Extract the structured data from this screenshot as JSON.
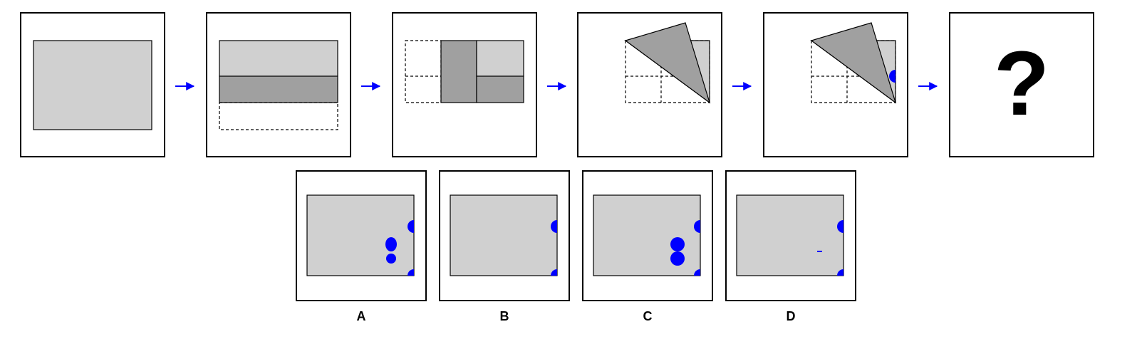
{
  "colors": {
    "paper": "#d0d0d0",
    "paper_folded": "#a0a0a0",
    "hole": "#0000ff",
    "arrow": "#0000ff",
    "frame": "#000000"
  },
  "question_mark": "?",
  "sequence": [
    {
      "name": "step-1-full-sheet"
    },
    {
      "name": "step-2-fold-bottom-up"
    },
    {
      "name": "step-3-fold-left-right"
    },
    {
      "name": "step-4-fold-diagonal"
    },
    {
      "name": "step-5-punch-hole"
    },
    {
      "name": "step-6-unknown"
    }
  ],
  "options": [
    {
      "label": "A",
      "holes": "two-edge-half-circles-and-two-center-dots"
    },
    {
      "label": "B",
      "holes": "two-edge-half-circles"
    },
    {
      "label": "C",
      "holes": "two-edge-half-circles-and-two-large-center-dots"
    },
    {
      "label": "D",
      "holes": "two-edge-half-circles-and-small-center-mark"
    }
  ]
}
